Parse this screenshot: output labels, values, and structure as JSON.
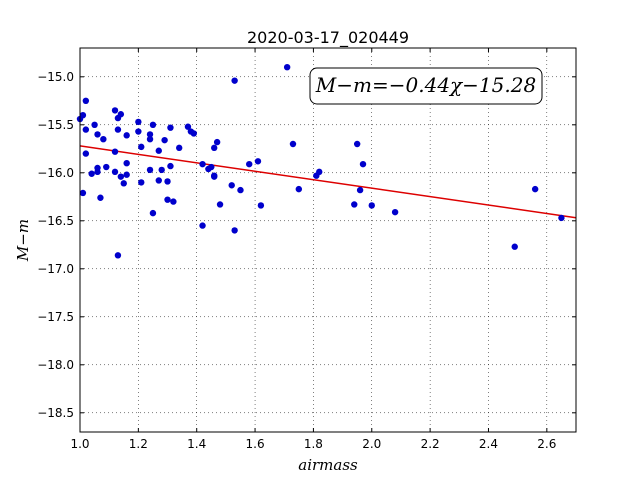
{
  "chart_data": {
    "type": "scatter",
    "title": "2020-03-17_020449",
    "xlabel": "airmass",
    "ylabel": "M−m",
    "xlim": [
      1.0,
      2.7
    ],
    "ylim": [
      -14.7,
      -18.7
    ],
    "xticks": [
      "1.0",
      "1.2",
      "1.4",
      "1.6",
      "1.8",
      "2.0",
      "2.2",
      "2.4",
      "2.6"
    ],
    "yticks": [
      "−15.0",
      "−15.5",
      "−16.0",
      "−16.5",
      "−17.0",
      "−17.5",
      "−18.0",
      "−18.5"
    ],
    "xtick_values": [
      1.0,
      1.2,
      1.4,
      1.6,
      1.8,
      2.0,
      2.2,
      2.4,
      2.6
    ],
    "ytick_values": [
      -15.0,
      -15.5,
      -16.0,
      -16.5,
      -17.0,
      -17.5,
      -18.0,
      -18.5
    ],
    "grid": true,
    "annotation": "M−m=−0.44χ−15.28",
    "fit": {
      "slope": -0.44,
      "intercept": -15.28,
      "color": "#dd0000"
    },
    "point_color": "#0000cc",
    "points": [
      [
        1.0,
        -15.44
      ],
      [
        1.01,
        -15.4
      ],
      [
        1.02,
        -15.25
      ],
      [
        1.02,
        -15.55
      ],
      [
        1.02,
        -15.8
      ],
      [
        1.01,
        -16.21
      ],
      [
        1.04,
        -16.01
      ],
      [
        1.05,
        -15.5
      ],
      [
        1.06,
        -15.6
      ],
      [
        1.06,
        -15.95
      ],
      [
        1.06,
        -15.99
      ],
      [
        1.07,
        -16.26
      ],
      [
        1.08,
        -15.65
      ],
      [
        1.09,
        -15.94
      ],
      [
        1.12,
        -15.35
      ],
      [
        1.12,
        -15.78
      ],
      [
        1.12,
        -15.99
      ],
      [
        1.13,
        -15.43
      ],
      [
        1.13,
        -15.55
      ],
      [
        1.14,
        -15.39
      ],
      [
        1.14,
        -16.04
      ],
      [
        1.15,
        -16.11
      ],
      [
        1.16,
        -15.61
      ],
      [
        1.16,
        -15.9
      ],
      [
        1.16,
        -16.02
      ],
      [
        1.13,
        -16.86
      ],
      [
        1.2,
        -15.47
      ],
      [
        1.2,
        -15.57
      ],
      [
        1.21,
        -15.73
      ],
      [
        1.21,
        -16.1
      ],
      [
        1.24,
        -15.6
      ],
      [
        1.24,
        -15.65
      ],
      [
        1.24,
        -15.97
      ],
      [
        1.25,
        -15.5
      ],
      [
        1.25,
        -16.42
      ],
      [
        1.27,
        -15.77
      ],
      [
        1.27,
        -16.08
      ],
      [
        1.28,
        -15.97
      ],
      [
        1.29,
        -15.66
      ],
      [
        1.3,
        -16.09
      ],
      [
        1.3,
        -16.28
      ],
      [
        1.31,
        -15.93
      ],
      [
        1.31,
        -15.53
      ],
      [
        1.32,
        -16.3
      ],
      [
        1.34,
        -15.74
      ],
      [
        1.37,
        -15.52
      ],
      [
        1.38,
        -15.57
      ],
      [
        1.39,
        -15.59
      ],
      [
        1.42,
        -15.91
      ],
      [
        1.42,
        -16.55
      ],
      [
        1.44,
        -15.96
      ],
      [
        1.45,
        -15.94
      ],
      [
        1.46,
        -15.74
      ],
      [
        1.46,
        -16.03
      ],
      [
        1.46,
        -16.04
      ],
      [
        1.47,
        -15.68
      ],
      [
        1.48,
        -16.33
      ],
      [
        1.52,
        -16.13
      ],
      [
        1.53,
        -16.6
      ],
      [
        1.53,
        -15.04
      ],
      [
        1.55,
        -16.18
      ],
      [
        1.58,
        -15.91
      ],
      [
        1.61,
        -15.88
      ],
      [
        1.62,
        -16.34
      ],
      [
        1.71,
        -14.9
      ],
      [
        1.73,
        -15.7
      ],
      [
        1.75,
        -16.17
      ],
      [
        1.81,
        -16.03
      ],
      [
        1.82,
        -15.99
      ],
      [
        1.94,
        -16.33
      ],
      [
        1.95,
        -15.7
      ],
      [
        1.96,
        -16.18
      ],
      [
        1.97,
        -15.91
      ],
      [
        2.0,
        -16.34
      ],
      [
        2.08,
        -16.41
      ],
      [
        2.49,
        -16.77
      ],
      [
        2.56,
        -16.17
      ],
      [
        2.65,
        -16.47
      ]
    ]
  }
}
